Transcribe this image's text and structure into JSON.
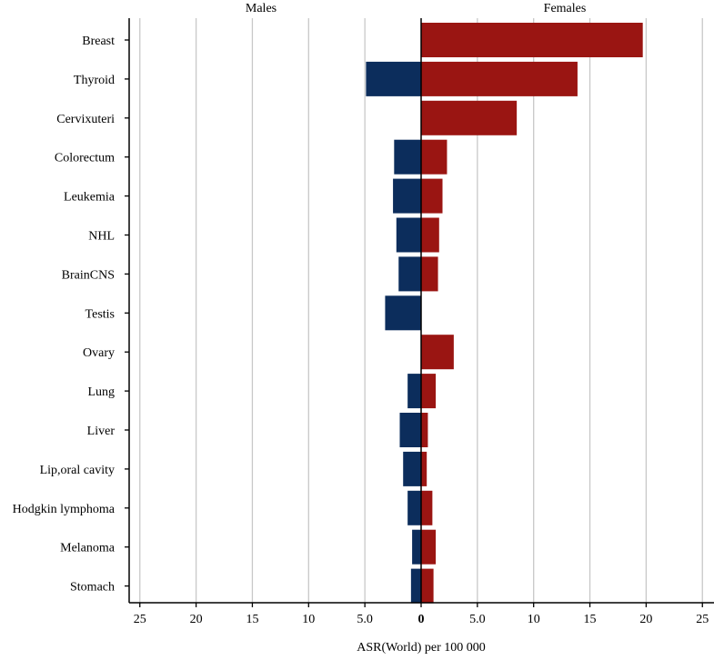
{
  "chart_data": {
    "type": "bar",
    "orientation": "horizontal-diverging",
    "panel_titles": {
      "left": "Males",
      "right": "Females"
    },
    "xlabel": "ASR(World) per 100 000",
    "xlim": [
      -25,
      25
    ],
    "tick_values": [
      -25,
      -20,
      -15,
      -10,
      -5,
      0,
      5,
      10,
      15,
      20,
      25
    ],
    "tick_labels": [
      "25",
      "20",
      "15",
      "10",
      "5.0",
      "0",
      "5.0",
      "10",
      "15",
      "20",
      "25"
    ],
    "grid": true,
    "categories": [
      "Breast",
      "Thyroid",
      "Cervixuteri",
      "Colorectum",
      "Leukemia",
      "NHL",
      "BrainCNS",
      "Testis",
      "Ovary",
      "Lung",
      "Liver",
      "Lip,oral cavity",
      "Hodgkin lymphoma",
      "Melanoma",
      "Stomach"
    ],
    "series": [
      {
        "name": "Males",
        "color": "#0c2d5c",
        "values": [
          0,
          4.9,
          0,
          2.4,
          2.5,
          2.2,
          2.0,
          3.2,
          0,
          1.2,
          1.9,
          1.6,
          1.2,
          0.8,
          0.9
        ]
      },
      {
        "name": "Females",
        "color": "#9a1512",
        "values": [
          19.7,
          13.9,
          8.5,
          2.3,
          1.9,
          1.6,
          1.5,
          0,
          2.9,
          1.3,
          0.6,
          0.5,
          1.0,
          1.3,
          1.1
        ]
      }
    ]
  }
}
